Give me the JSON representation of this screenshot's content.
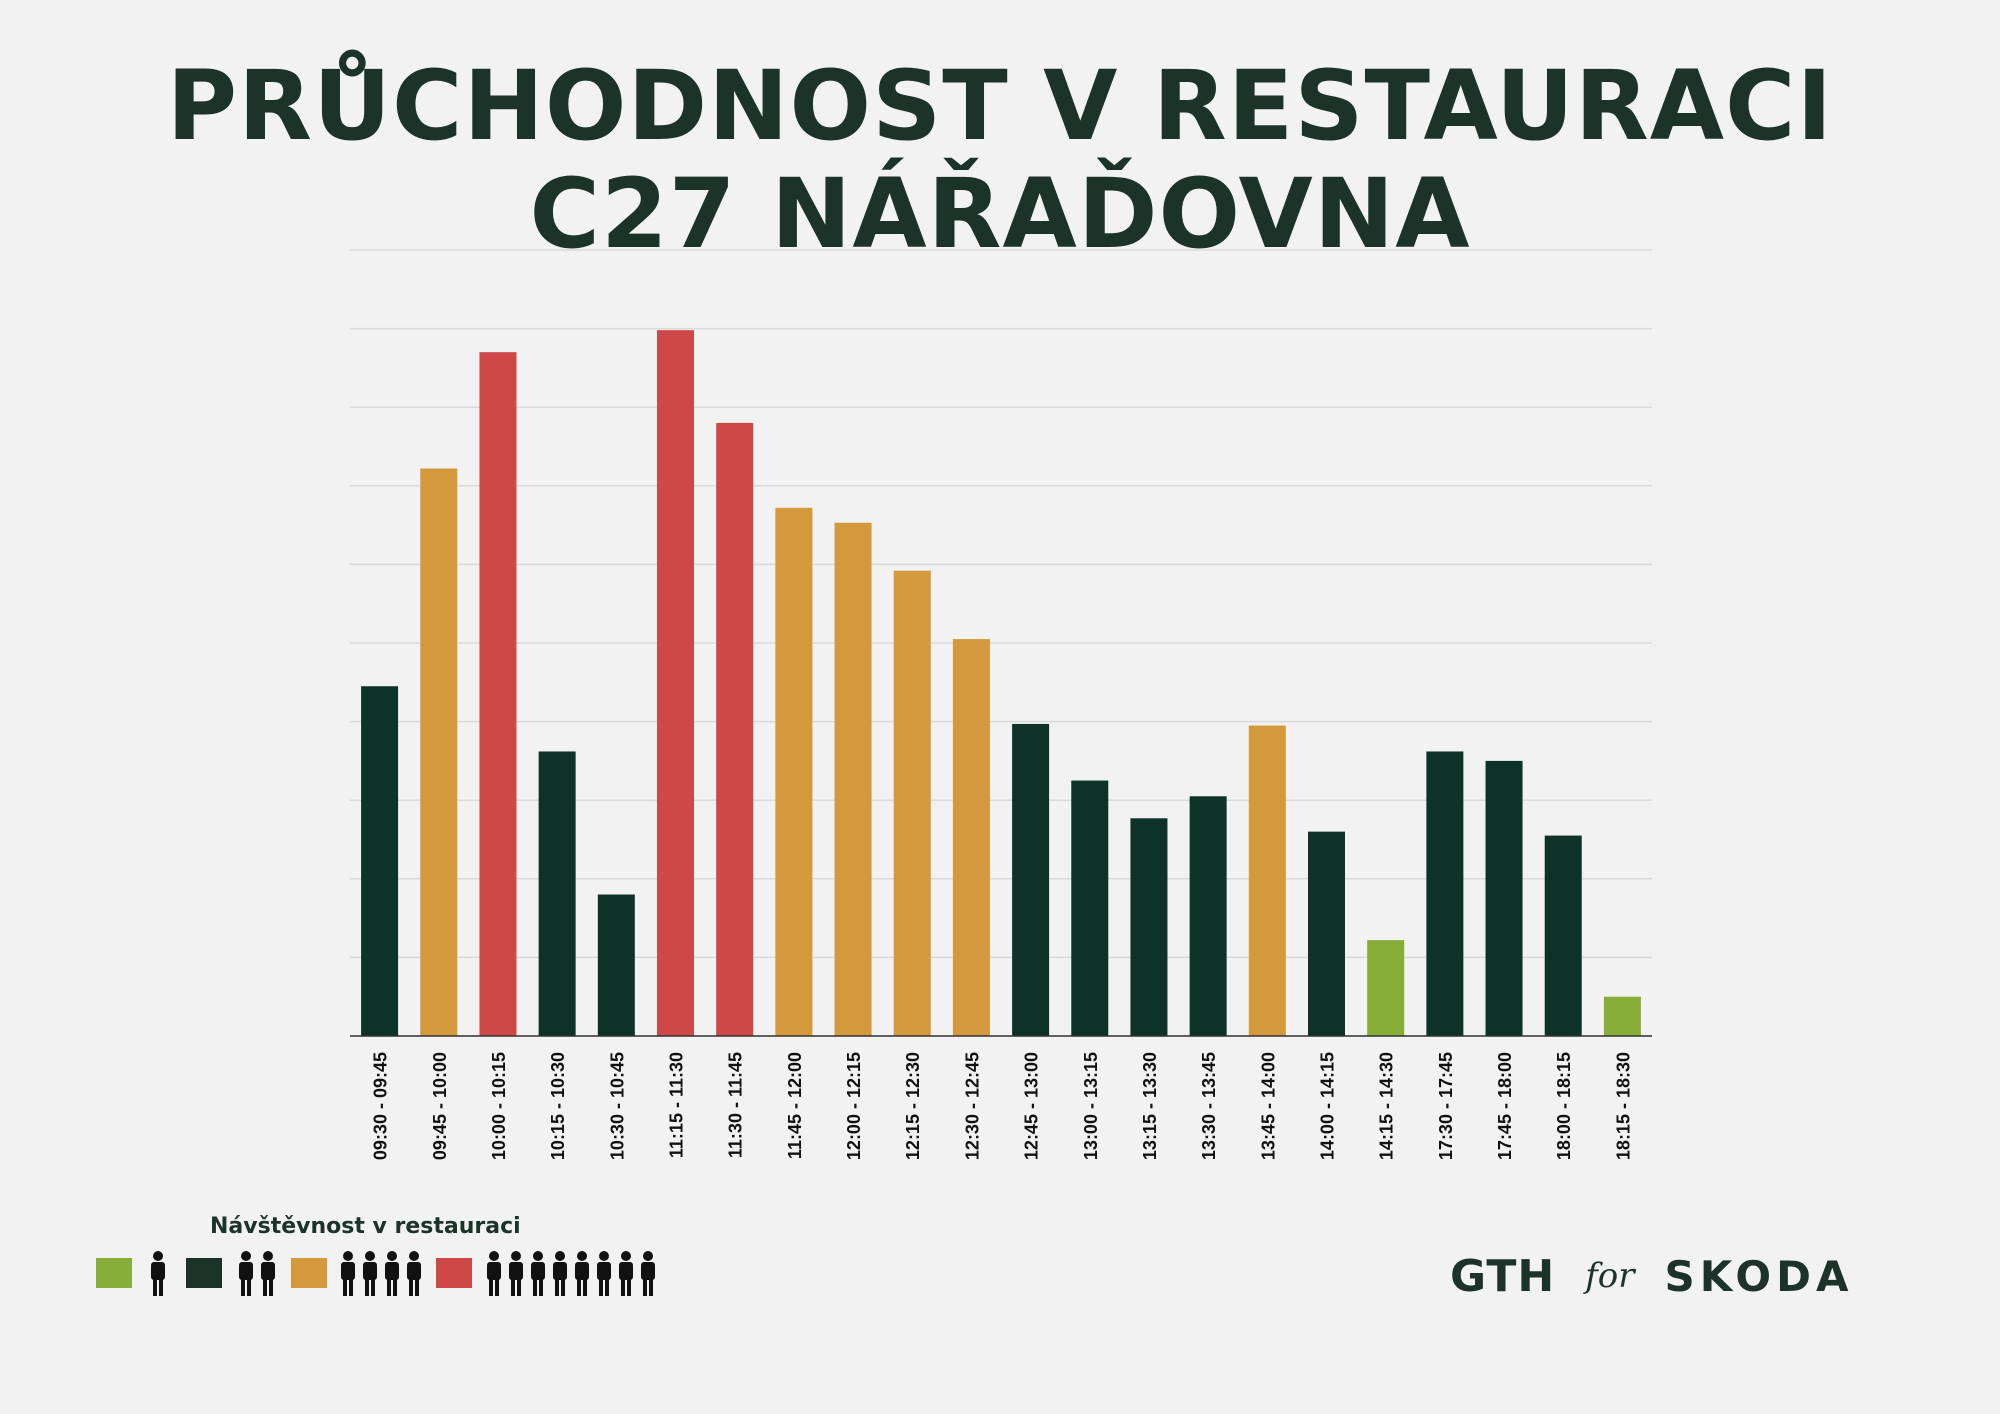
{
  "title": {
    "line1": "PRŮCHODNOST V RESTAURACI",
    "line2": "C27 NÁŘAĎOVNA"
  },
  "chart_data": {
    "type": "bar",
    "title": "PRŮCHODNOST V RESTAURACI C27 NÁŘAĎOVNA",
    "xlabel": "",
    "ylabel": "",
    "ylim": [
      0,
      100
    ],
    "grid": true,
    "categories": [
      "09:30 - 09:45",
      "09:45 - 10:00",
      "10:00 - 10:15",
      "10:15 - 10:30",
      "10:30 - 10:45",
      "11:15 - 11:30",
      "11:30 - 11:45",
      "11:45 - 12:00",
      "12:00 - 12:15",
      "12:15 - 12:30",
      "12:30 - 12:45",
      "12:45 - 13:00",
      "13:00 - 13:15",
      "13:15 - 13:30",
      "13:30 - 13:45",
      "13:45 - 14:00",
      "14:00 - 14:15",
      "14:15 - 14:30",
      "17:30 - 17:45",
      "17:45 - 18:00",
      "18:00 - 18:15",
      "18:15 - 18:30"
    ],
    "values": [
      44.5,
      72.2,
      87.0,
      36.2,
      18.0,
      89.8,
      78.0,
      67.2,
      65.3,
      59.2,
      50.5,
      39.7,
      32.5,
      27.7,
      30.5,
      39.5,
      26.0,
      12.2,
      36.2,
      35.0,
      25.5,
      5.0
    ],
    "levels": [
      2,
      3,
      4,
      2,
      2,
      4,
      4,
      3,
      3,
      3,
      3,
      2,
      2,
      2,
      2,
      3,
      2,
      1,
      2,
      2,
      2,
      1
    ],
    "level_colors": {
      "1": "#86ae39",
      "2": "#0d3329",
      "3": "#d4993d",
      "4": "#cf4848"
    },
    "legend_title": "Návštěvnost v restauraci",
    "legend": [
      {
        "level": 1,
        "color": "#86ae39",
        "people": 1
      },
      {
        "level": 2,
        "color": "#1c3329",
        "people": 2
      },
      {
        "level": 3,
        "color": "#d4993d",
        "people": 4
      },
      {
        "level": 4,
        "color": "#cf4848",
        "people": 8
      }
    ]
  },
  "colors": {
    "background": "#f2f2f2",
    "title": "#1c3329",
    "grid": "#d9d9d9",
    "axis": "#333333"
  },
  "brand": {
    "gth": "GTH",
    "for": "for",
    "skoda": "SKODA"
  }
}
